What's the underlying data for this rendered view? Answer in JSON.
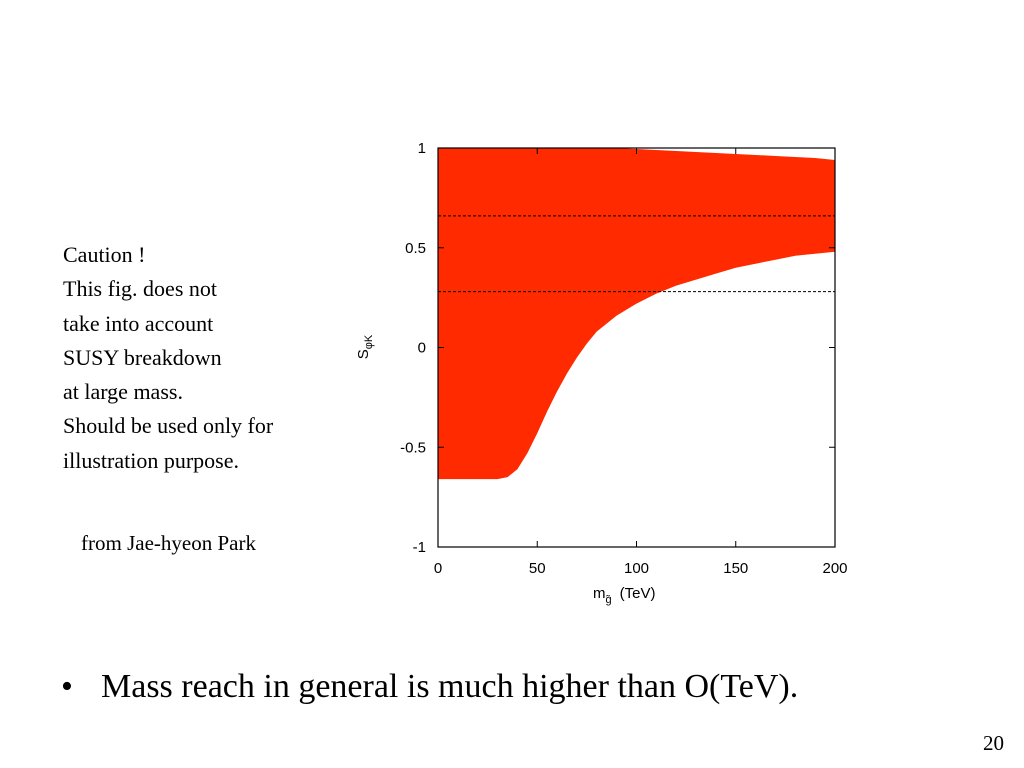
{
  "slide": {
    "caution_lines": [
      "Caution !",
      "This fig. does not",
      "take into account",
      "SUSY breakdown",
      "at large mass.",
      "Should be used only for",
      "illustration purpose."
    ],
    "credit": "from Jae-hyeon Park",
    "bullet_marker": "•",
    "bullet_text": "Mass reach in general is much higher than O(TeV).",
    "page_number": "20"
  },
  "chart_data": {
    "type": "area",
    "title": "",
    "xlabel": "m",
    "xlabel_sub": "g̃",
    "xlabel_unit": "(TeV)",
    "ylabel": "S",
    "ylabel_sub": "φK",
    "xlim": [
      0,
      200
    ],
    "ylim": [
      -1,
      1
    ],
    "x_ticks": [
      0,
      50,
      100,
      150,
      200
    ],
    "y_ticks": [
      -1,
      -0.5,
      0,
      0.5,
      1
    ],
    "grid": false,
    "fill_color": "#ff2a00",
    "series": [
      {
        "x": [
          0,
          20,
          30,
          35,
          40,
          45,
          50,
          55,
          60,
          65,
          70,
          75,
          80,
          90,
          100,
          110,
          120,
          130,
          140,
          150,
          160,
          170,
          180,
          190,
          200
        ],
        "lower": [
          -0.66,
          -0.66,
          -0.66,
          -0.65,
          -0.61,
          -0.53,
          -0.43,
          -0.32,
          -0.22,
          -0.13,
          -0.05,
          0.02,
          0.08,
          0.16,
          0.22,
          0.27,
          0.31,
          0.34,
          0.37,
          0.4,
          0.42,
          0.44,
          0.46,
          0.47,
          0.48
        ],
        "upper": [
          1.0,
          1.0,
          1.0,
          1.0,
          1.0,
          1.0,
          1.0,
          1.0,
          1.0,
          1.0,
          1.0,
          1.0,
          1.0,
          1.0,
          0.995,
          0.99,
          0.985,
          0.98,
          0.975,
          0.97,
          0.965,
          0.96,
          0.955,
          0.95,
          0.94
        ]
      }
    ],
    "reference_lines_y": [
      0.66,
      0.28
    ]
  }
}
